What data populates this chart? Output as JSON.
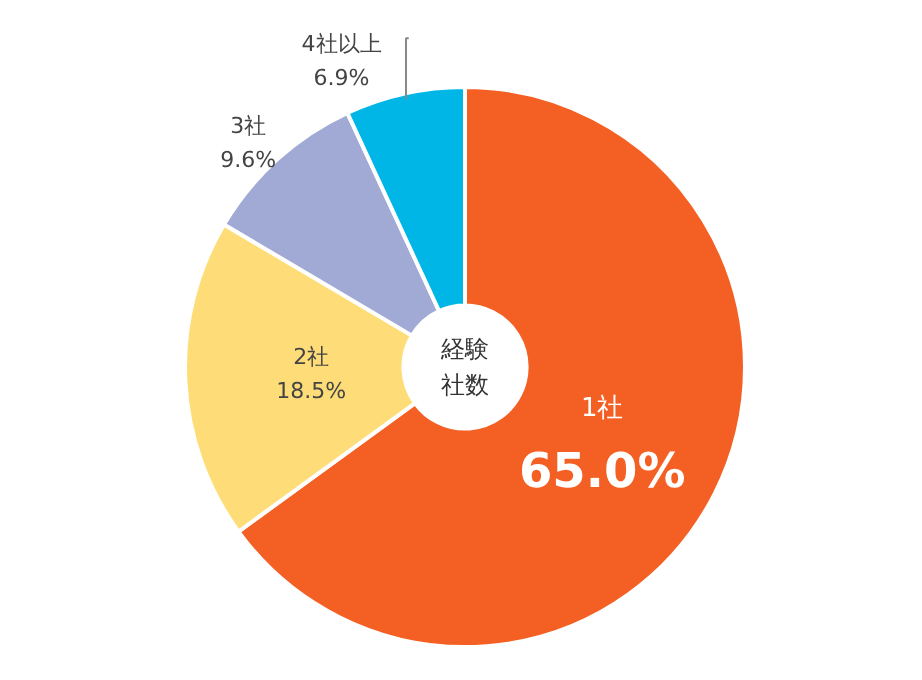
{
  "chart_data": {
    "type": "donut",
    "title": "経験社数",
    "categories": [
      "1社",
      "2社",
      "3社",
      "4社以上"
    ],
    "values": [
      65.0,
      18.5,
      9.6,
      6.9
    ],
    "value_labels": [
      "65.0%",
      "18.5%",
      "9.6%",
      "6.9%"
    ],
    "colors": [
      "#f46024",
      "#fedd78",
      "#a0aad4",
      "#00b6e6"
    ]
  }
}
